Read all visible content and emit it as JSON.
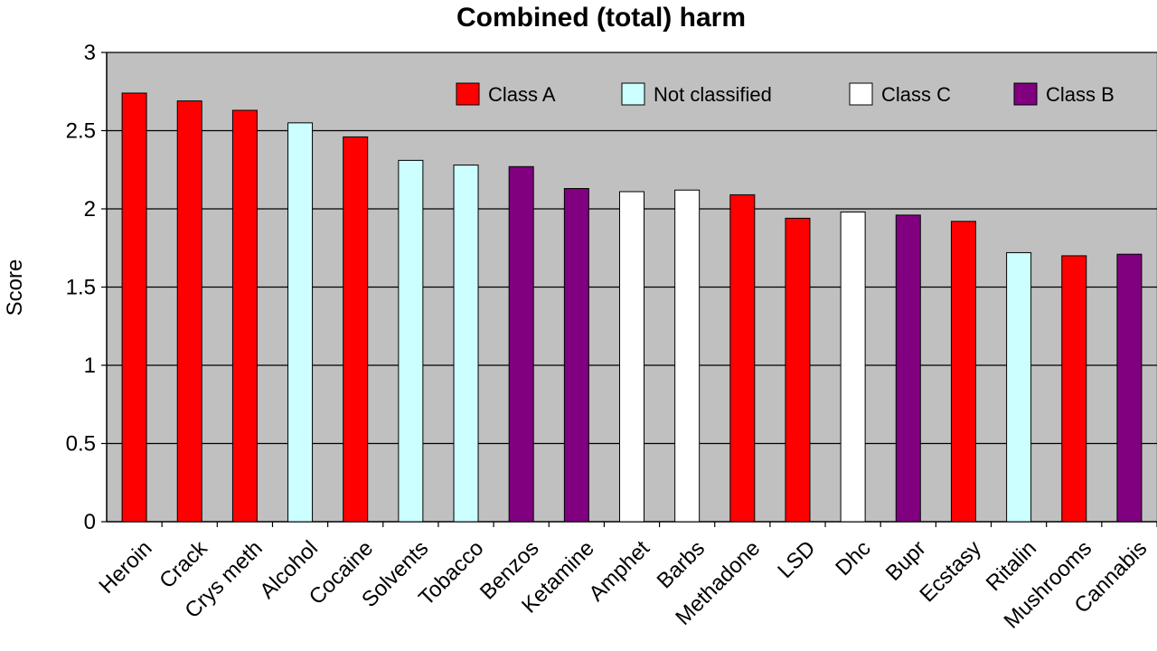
{
  "chart_data": {
    "type": "bar",
    "title": "Combined (total) harm",
    "xlabel": "",
    "ylabel": "Score",
    "ylim": [
      0,
      3
    ],
    "yticks": [
      "0",
      "0.5",
      "1",
      "1.5",
      "2",
      "2.5",
      "3"
    ],
    "grid": true,
    "legend_position": "top-right",
    "legend": [
      {
        "label": "Class A",
        "color": "#ff0000"
      },
      {
        "label": "Not classified",
        "color": "#ccffff"
      },
      {
        "label": "Class C",
        "color": "#ffffff"
      },
      {
        "label": "Class B",
        "color": "#800080"
      }
    ],
    "categories": [
      "Heroin",
      "Crack",
      "Crys meth",
      "Alcohol",
      "Cocaine",
      "Solvents",
      "Tobacco",
      "Benzos",
      "Ketamine",
      "Amphet",
      "Barbs",
      "Methadone",
      "LSD",
      "Dhc",
      "Bupr",
      "Ecstasy",
      "Ritalin",
      "Mushrooms",
      "Cannabis"
    ],
    "values": [
      2.74,
      2.69,
      2.63,
      2.55,
      2.46,
      2.31,
      2.28,
      2.27,
      2.13,
      2.11,
      2.12,
      2.09,
      1.94,
      1.98,
      1.96,
      1.92,
      1.72,
      1.7,
      1.71
    ],
    "classes": [
      "Class A",
      "Class A",
      "Class A",
      "Not classified",
      "Class A",
      "Not classified",
      "Not classified",
      "Class B",
      "Class B",
      "Class C",
      "Class C",
      "Class A",
      "Class A",
      "Class C",
      "Class B",
      "Class A",
      "Not classified",
      "Class A",
      "Class B"
    ],
    "plot_background": "#c0c0c0"
  }
}
